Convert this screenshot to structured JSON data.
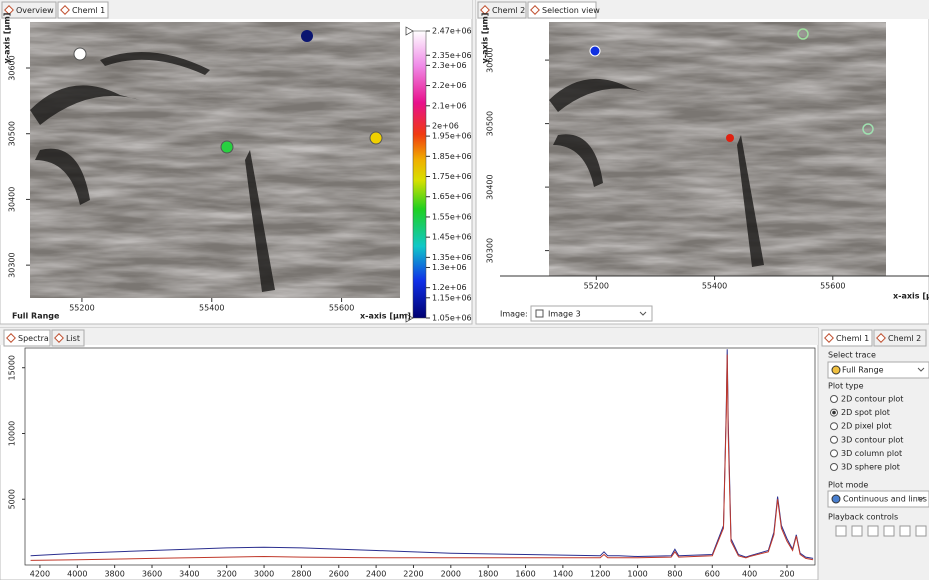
{
  "left_panel": {
    "tabs": [
      "Overview",
      "Cheml 1"
    ],
    "y_axis_label": "y-axis [µm]",
    "x_axis_label": "x-axis [µm]",
    "trace_label": "Full Range",
    "xlim": [
      55120,
      55690
    ],
    "xticks": [
      55200,
      55400,
      55600
    ],
    "ylim": [
      30250,
      30670
    ],
    "yticks": [
      30300,
      30400,
      30500,
      30600
    ],
    "colorbar": {
      "lim": [
        1050000,
        2470000
      ],
      "ticks": [
        {
          "value": 2470000,
          "label": "2.47e+06"
        },
        {
          "value": 2350000,
          "label": "2.35e+06"
        },
        {
          "value": 2300000,
          "label": "2.3e+06"
        },
        {
          "value": 2200000,
          "label": "2.2e+06"
        },
        {
          "value": 2100000,
          "label": "2.1e+06"
        },
        {
          "value": 2000000,
          "label": "2e+06"
        },
        {
          "value": 1950000,
          "label": "1.95e+06"
        },
        {
          "value": 1850000,
          "label": "1.85e+06"
        },
        {
          "value": 1750000,
          "label": "1.75e+06"
        },
        {
          "value": 1650000,
          "label": "1.65e+06"
        },
        {
          "value": 1550000,
          "label": "1.55e+06"
        },
        {
          "value": 1450000,
          "label": "1.45e+06"
        },
        {
          "value": 1350000,
          "label": "1.35e+06"
        },
        {
          "value": 1300000,
          "label": "1.3e+06"
        },
        {
          "value": 1200000,
          "label": "1.2e+06"
        },
        {
          "value": 1150000,
          "label": "1.15e+06"
        },
        {
          "value": 1050000,
          "label": "1.05e+06"
        }
      ]
    }
  },
  "right_panel": {
    "tabs": [
      "Cheml 2",
      "Selection view"
    ],
    "y_axis_label": "y-axis [µm]",
    "x_axis_label": "x-axis [µm]",
    "xlim": [
      55120,
      55690
    ],
    "xticks": [
      55200,
      55400,
      55600
    ],
    "ylim": [
      30260,
      30660
    ],
    "yticks": [
      30300,
      30400,
      30500,
      30600
    ],
    "image_label": "Image:",
    "image_select": "Image 3"
  },
  "spectra": {
    "tabs": [
      "Spectra",
      "List"
    ],
    "xlim": [
      4280,
      50
    ],
    "ylim": [
      0,
      16500
    ],
    "xticks": [
      4200,
      4000,
      3800,
      3600,
      3400,
      3200,
      3000,
      2800,
      2600,
      2400,
      2200,
      2000,
      1800,
      1600,
      1400,
      1200,
      1000,
      800,
      600,
      400,
      200
    ],
    "yticks": [
      5000,
      10000,
      15000
    ],
    "x": [
      4250,
      4000,
      3600,
      3200,
      3000,
      2800,
      2400,
      2000,
      1600,
      1200,
      1180,
      1160,
      1100,
      1000,
      820,
      800,
      780,
      600,
      540,
      525,
      520,
      515,
      500,
      460,
      420,
      400,
      300,
      270,
      250,
      230,
      200,
      170,
      150,
      130,
      100,
      60
    ],
    "series": [
      {
        "color": "#2b2f8f",
        "values": [
          700,
          900,
          1100,
          1300,
          1350,
          1300,
          1100,
          900,
          800,
          700,
          1000,
          700,
          700,
          650,
          700,
          1200,
          700,
          800,
          3000,
          12000,
          16400,
          11000,
          2000,
          800,
          600,
          700,
          1100,
          2500,
          5200,
          3000,
          2000,
          1200,
          2300,
          900,
          600,
          500
        ]
      },
      {
        "color": "#c0392b",
        "values": [
          350,
          400,
          500,
          600,
          650,
          600,
          550,
          550,
          550,
          550,
          800,
          550,
          550,
          550,
          600,
          1000,
          600,
          700,
          2800,
          11500,
          16000,
          10000,
          1800,
          700,
          550,
          650,
          1000,
          2300,
          5000,
          2800,
          1800,
          1100,
          2200,
          800,
          500,
          400
        ]
      }
    ]
  },
  "sidebar": {
    "tabs": [
      "Cheml 1",
      "Cheml 2"
    ],
    "select_trace": "Select trace",
    "trace": "Full Range",
    "plot_type": "Plot type",
    "plot_types": [
      "2D contour plot",
      "2D spot plot",
      "2D pixel plot",
      "3D contour plot",
      "3D column plot",
      "3D sphere plot"
    ],
    "selected_plot_type": 1,
    "plot_mode": "Plot mode",
    "mode": "Continuous and lines",
    "playback": "Playback controls"
  }
}
